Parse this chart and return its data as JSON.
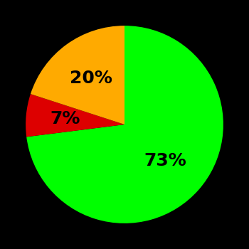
{
  "slices": [
    73,
    7,
    20
  ],
  "colors": [
    "#00ff00",
    "#dd0000",
    "#ffaa00"
  ],
  "labels": [
    "73%",
    "7%",
    "20%"
  ],
  "background_color": "#000000",
  "text_color": "#000000",
  "startangle": 90,
  "counterclock": false,
  "figsize": [
    3.5,
    3.5
  ],
  "dpi": 100,
  "label_fontsize": 18,
  "label_fontweight": "bold",
  "label_radii": [
    0.55,
    0.6,
    0.58
  ]
}
